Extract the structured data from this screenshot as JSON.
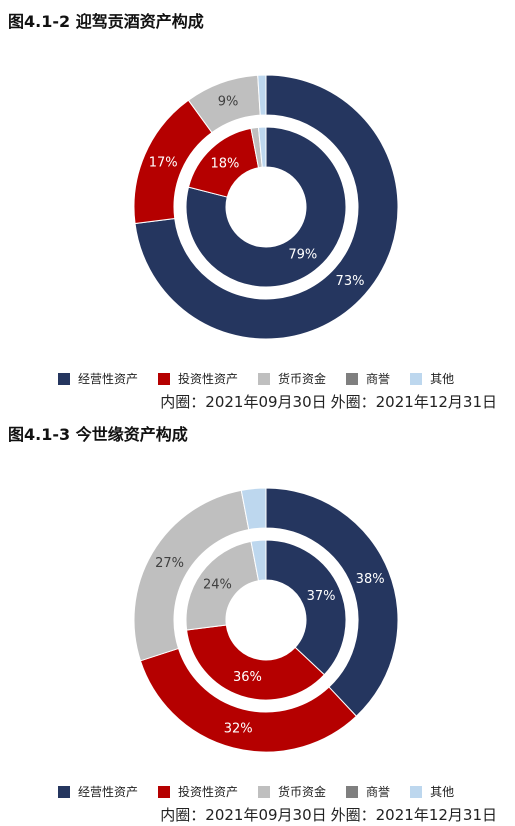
{
  "colors": {
    "经营性资产": "#25365F",
    "投资性资产": "#B50000",
    "货币资金": "#BFBFBF",
    "商誉": "#7F7F7F",
    "其他": "#BDD7EE"
  },
  "legend_labels": [
    "经营性资产",
    "投资性资产",
    "货币资金",
    "商誉",
    "其他"
  ],
  "charts": [
    {
      "title": "图4.1-2 迎驾贡酒资产构成",
      "note_inner": "内圈：2021年09月30日",
      "note_outer": "外圈：2021年12月31日"
    },
    {
      "title": "图4.1-3 今世缘资产构成",
      "note_inner": "内圈：2021年09月30日",
      "note_outer": "外圈：2021年12月31日"
    }
  ],
  "chart_data": [
    {
      "type": "pie",
      "title": "图4.1-2 迎驾贡酒资产构成",
      "categories": [
        "经营性资产",
        "投资性资产",
        "货币资金",
        "商誉",
        "其他"
      ],
      "series": [
        {
          "name": "内圈：2021年09月30日",
          "values": [
            79,
            18,
            1.5,
            0,
            1.5
          ],
          "labels": [
            "79%",
            "18%",
            "",
            "",
            ""
          ]
        },
        {
          "name": "外圈：2021年12月31日",
          "values": [
            73,
            17,
            9,
            0,
            1
          ],
          "labels": [
            "73%",
            "17%",
            "9%",
            "",
            ""
          ]
        }
      ]
    },
    {
      "type": "pie",
      "title": "图4.1-3 今世缘资产构成",
      "categories": [
        "经营性资产",
        "投资性资产",
        "货币资金",
        "商誉",
        "其他"
      ],
      "series": [
        {
          "name": "内圈：2021年09月30日",
          "values": [
            37,
            36,
            24,
            0,
            3
          ],
          "labels": [
            "37%",
            "36%",
            "24%",
            "",
            ""
          ]
        },
        {
          "name": "外圈：2021年12月31日",
          "values": [
            38,
            32,
            27,
            0,
            3
          ],
          "labels": [
            "38%",
            "32%",
            "27%",
            "",
            ""
          ]
        }
      ]
    }
  ]
}
